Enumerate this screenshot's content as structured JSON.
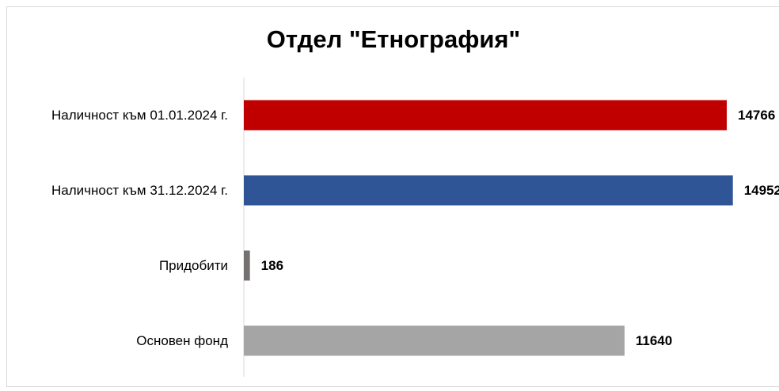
{
  "chart_data": {
    "type": "bar",
    "orientation": "horizontal",
    "title": "Отдел \"Етнография\"",
    "categories": [
      "Наличност към 01.01.2024 г.",
      "Наличност към 31.12.2024 г.",
      "Придобити",
      "Основен фонд"
    ],
    "values": [
      14766,
      14952,
      186,
      11640
    ],
    "colors": [
      "#c00000",
      "#2f5597",
      "#767171",
      "#a5a5a5"
    ],
    "xlim": [
      0,
      16000
    ]
  }
}
